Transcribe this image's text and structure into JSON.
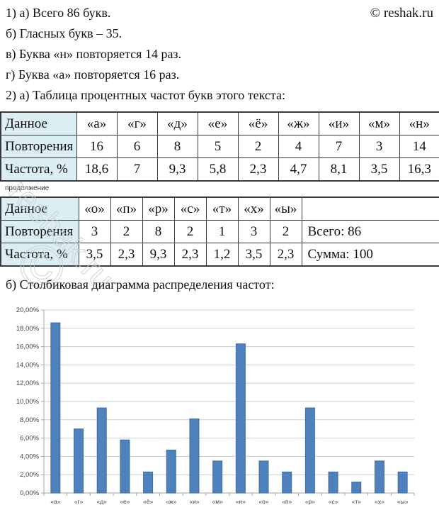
{
  "copyright": "© reshak.ru",
  "watermark_text": "reshak.ru",
  "watermark_symbol": "©",
  "answers": [
    "1) а) Всего 86 букв.",
    "б) Гласных букв – 35.",
    "в) Буква «н» повторяется 14 раз.",
    "г) Буква «а» повторяется 16 раз.",
    "2) а) Таблица процентных частот букв этого текста:"
  ],
  "continuation_label": "продолжение",
  "table1": {
    "rows": [
      [
        "Данное",
        "«а»",
        "«г»",
        "«д»",
        "«е»",
        "«ё»",
        "«ж»",
        "«и»",
        "«м»",
        "«н»"
      ],
      [
        "Повторения",
        "16",
        "6",
        "8",
        "5",
        "2",
        "4",
        "7",
        "3",
        "14"
      ],
      [
        "Частота, %",
        "18,6",
        "7",
        "9,3",
        "5,8",
        "2,3",
        "4,7",
        "8,1",
        "3,5",
        "16,3"
      ]
    ]
  },
  "table2": {
    "rows": [
      [
        "Данное",
        "«о»",
        "«п»",
        "«р»",
        "«с»",
        "«т»",
        "«х»",
        "«ы»",
        ""
      ],
      [
        "Повторения",
        "3",
        "2",
        "8",
        "2",
        "1",
        "3",
        "2",
        "Всего: 86"
      ],
      [
        "Частота, %",
        "3,5",
        "2,3",
        "9,3",
        "2,3",
        "1,2",
        "3,5",
        "2,3",
        "Сумма: 100"
      ]
    ]
  },
  "chart_heading": "б) Столбиковая диаграмма распределения частот:",
  "chart_data": {
    "type": "bar",
    "title": "",
    "xlabel": "",
    "ylabel": "",
    "categories": [
      "«а»",
      "«г»",
      "«д»",
      "«е»",
      "«ё»",
      "«ж»",
      "«и»",
      "«м»",
      "«н»",
      "«о»",
      "«п»",
      "«р»",
      "«с»",
      "«т»",
      "«х»",
      "«ы»"
    ],
    "values": [
      18.6,
      7,
      9.3,
      5.8,
      2.3,
      4.7,
      8.1,
      3.5,
      16.3,
      3.5,
      2.3,
      9.3,
      2.3,
      1.2,
      3.5,
      2.3
    ],
    "ylim": [
      0,
      20
    ],
    "ytick_step": 2,
    "ytick_labels": [
      "0,00%",
      "2,00%",
      "4,00%",
      "6,00%",
      "8,00%",
      "10,00%",
      "12,00%",
      "14,00%",
      "16,00%",
      "18,00%",
      "20,00%"
    ],
    "grid": true,
    "legend_position": "none",
    "bar_color": "#4f81bd",
    "bar_border_color": "#3d6ea5",
    "gridline_color": "#c9cdd1",
    "axis_color": "#a6a6a6"
  }
}
